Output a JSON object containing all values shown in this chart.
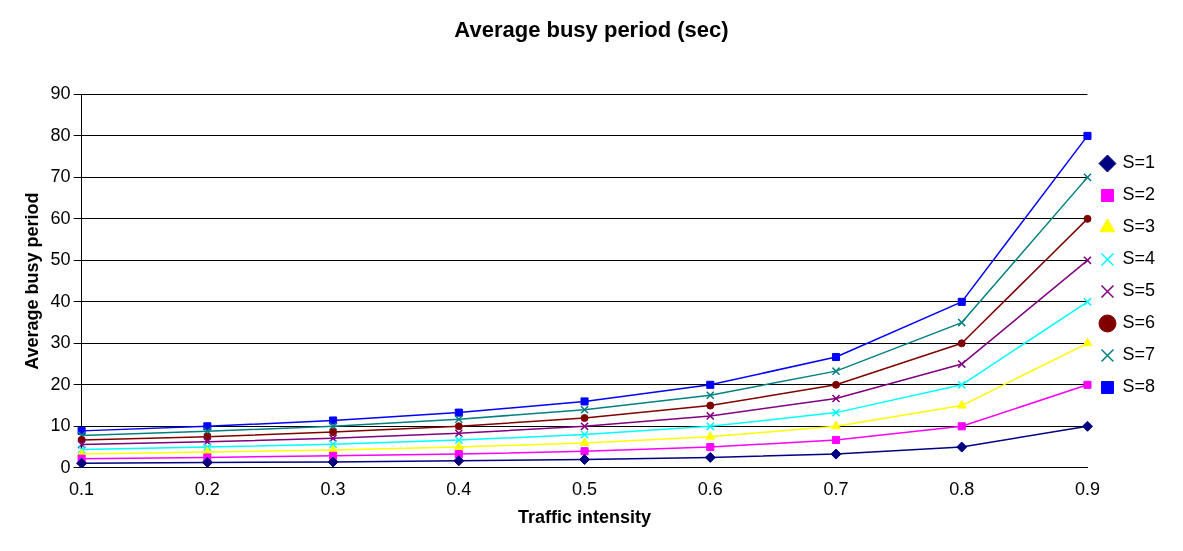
{
  "chart_data": {
    "type": "line",
    "title": "Average busy period (sec)",
    "xlabel": "Traffic intensity",
    "ylabel": "Average busy period",
    "categories": [
      "0.1",
      "0.2",
      "0.3",
      "0.4",
      "0.5",
      "0.6",
      "0.7",
      "0.8",
      "0.9"
    ],
    "ylim": [
      0,
      90
    ],
    "yticks": [
      0,
      10,
      20,
      30,
      40,
      50,
      60,
      70,
      80,
      90
    ],
    "grid": "y",
    "legend": "right",
    "line_style": "solid",
    "series": [
      {
        "name": "S=1",
        "color": "#000080",
        "marker": "diamond",
        "values": [
          1.1,
          1.3,
          1.4,
          1.7,
          2,
          2.5,
          3.3,
          5,
          10
        ]
      },
      {
        "name": "S=2",
        "color": "#ff00ff",
        "marker": "square",
        "values": [
          2.2,
          2.5,
          2.9,
          3.3,
          4,
          5,
          6.7,
          10,
          20
        ]
      },
      {
        "name": "S=3",
        "color": "#ffff00",
        "marker": "triangle",
        "values": [
          3.3,
          3.8,
          4.3,
          5,
          6,
          7.5,
          10,
          15,
          30
        ]
      },
      {
        "name": "S=4",
        "color": "#00ffff",
        "marker": "cross",
        "values": [
          4.4,
          5,
          5.7,
          6.7,
          8,
          10,
          13.3,
          20,
          40
        ]
      },
      {
        "name": "S=5",
        "color": "#800080",
        "marker": "cross",
        "values": [
          5.6,
          6.3,
          7.1,
          8.3,
          10,
          12.5,
          16.7,
          25,
          50
        ]
      },
      {
        "name": "S=6",
        "color": "#800000",
        "marker": "circle",
        "values": [
          6.7,
          7.5,
          8.6,
          10,
          12,
          15,
          20,
          30,
          60
        ]
      },
      {
        "name": "S=7",
        "color": "#008080",
        "marker": "cross",
        "values": [
          7.8,
          8.8,
          10,
          11.7,
          14,
          17.5,
          23.3,
          35,
          70
        ]
      },
      {
        "name": "S=8",
        "color": "#0000ff",
        "marker": "square",
        "values": [
          8.9,
          10,
          11.4,
          13.3,
          16,
          20,
          26.7,
          40,
          80
        ]
      }
    ]
  }
}
